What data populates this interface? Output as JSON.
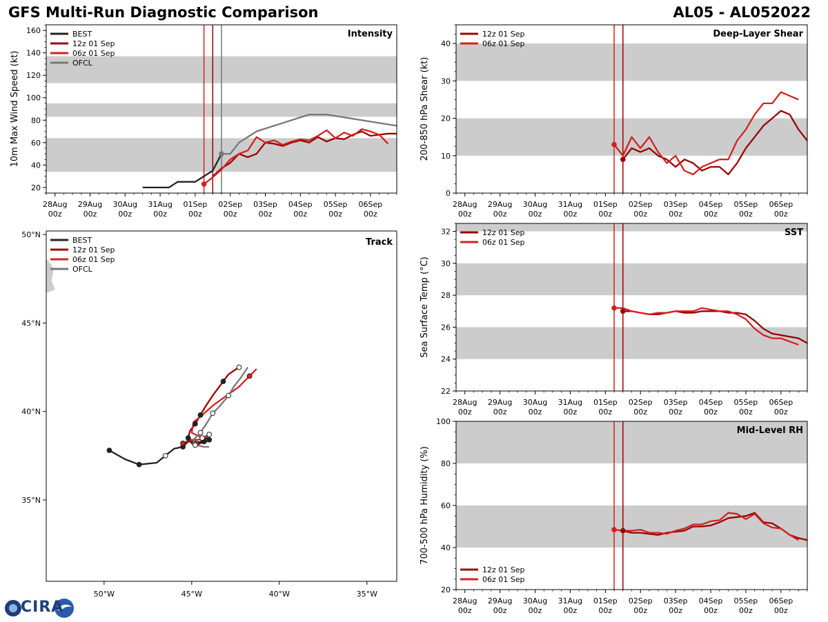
{
  "title": "GFS Multi-Run Diagnostic Comparison",
  "storm_id": "AL05 - AL052022",
  "logo_text": "CIRA",
  "colors": {
    "best": "#222222",
    "run12": "#990000",
    "run06": "#d42020",
    "ofcl": "#777777",
    "band": "#cccccc"
  },
  "time_ticks": [
    [
      "28Aug",
      "00z"
    ],
    [
      "29Aug",
      "00z"
    ],
    [
      "30Aug",
      "00z"
    ],
    [
      "31Aug",
      "00z"
    ],
    [
      "01Sep",
      "00z"
    ],
    [
      "02Sep",
      "00z"
    ],
    [
      "03Sep",
      "00z"
    ],
    [
      "04Sep",
      "00z"
    ],
    [
      "05Sep",
      "00z"
    ],
    [
      "06Sep",
      "00z"
    ]
  ],
  "chart_data": [
    {
      "id": "intensity",
      "type": "line",
      "title": "Intensity",
      "ylabel": "10m Max Wind Speed (kt)",
      "xlim": [
        -0.25,
        9.75
      ],
      "ylim": [
        15,
        165
      ],
      "yticks": [
        20,
        40,
        60,
        80,
        100,
        120,
        140,
        160
      ],
      "bands": [
        [
          34,
          64
        ],
        [
          83,
          95
        ],
        [
          113,
          137
        ]
      ],
      "vlines": [
        {
          "x": 4.25,
          "series": "06z 01 Sep"
        },
        {
          "x": 4.5,
          "series": "12z 01 Sep"
        },
        {
          "x": 4.75,
          "series": "OFCL"
        }
      ],
      "legend": [
        "BEST",
        "12z 01 Sep",
        "06z 01 Sep",
        "OFCL"
      ],
      "legend_position": "top-left",
      "series": [
        {
          "name": "BEST",
          "color_key": "best",
          "x": [
            2.5,
            2.75,
            3.0,
            3.25,
            3.5,
            3.75,
            4.0,
            4.25,
            4.5,
            4.75
          ],
          "y": [
            20,
            20,
            20,
            20,
            25,
            25,
            25,
            30,
            35,
            50
          ]
        },
        {
          "name": "12z 01 Sep",
          "color_key": "run12",
          "x": [
            4.5,
            4.75,
            5.0,
            5.25,
            5.5,
            5.75,
            6.0,
            6.25,
            6.5,
            6.75,
            7.0,
            7.25,
            7.5,
            7.75,
            8.0,
            8.25,
            8.5,
            8.75,
            9.0,
            9.25,
            9.5,
            9.75
          ],
          "y": [
            30,
            37,
            42,
            50,
            47,
            50,
            60,
            59,
            57,
            60,
            62,
            60,
            65,
            61,
            64,
            63,
            67,
            70,
            66,
            67,
            68,
            68
          ]
        },
        {
          "name": "06z 01 Sep",
          "color_key": "run06",
          "x": [
            4.25,
            4.5,
            4.75,
            5.0,
            5.25,
            5.5,
            5.75,
            6.0,
            6.25,
            6.5,
            6.75,
            7.0,
            7.25,
            7.5,
            7.75,
            8.0,
            8.25,
            8.5,
            8.75,
            9.0,
            9.25,
            9.5
          ],
          "y": [
            23,
            29,
            36,
            45,
            50,
            53,
            65,
            60,
            62,
            58,
            61,
            63,
            62,
            66,
            71,
            64,
            69,
            66,
            72,
            70,
            67,
            59
          ]
        },
        {
          "name": "OFCL",
          "color_key": "ofcl",
          "x": [
            4.75,
            5.0,
            5.25,
            5.75,
            7.25,
            7.75,
            9.75
          ],
          "y": [
            50,
            50,
            60,
            70,
            85,
            85,
            75
          ]
        }
      ],
      "markers": [
        {
          "series": "06z 01 Sep",
          "x": 4.25,
          "y": 23
        },
        {
          "series": "OFCL",
          "x": 4.75,
          "y": 50
        }
      ]
    },
    {
      "id": "shear",
      "type": "line",
      "title": "Deep-Layer Shear",
      "ylabel": "200-850 hPa Shear (kt)",
      "xlim": [
        -0.25,
        9.75
      ],
      "ylim": [
        0,
        45
      ],
      "yticks": [
        0,
        10,
        20,
        30,
        40
      ],
      "bands": [
        [
          10,
          20
        ],
        [
          30,
          40
        ]
      ],
      "vlines": [
        {
          "x": 4.25,
          "series": "06z 01 Sep"
        },
        {
          "x": 4.5,
          "series": "12z 01 Sep"
        }
      ],
      "legend": [
        "12z 01 Sep",
        "06z 01 Sep"
      ],
      "legend_position": "top-left",
      "series": [
        {
          "name": "12z 01 Sep",
          "color_key": "run12",
          "x": [
            4.5,
            4.75,
            5.0,
            5.25,
            5.5,
            5.75,
            6.0,
            6.25,
            6.5,
            6.75,
            7.0,
            7.25,
            7.5,
            7.75,
            8.0,
            8.25,
            8.5,
            8.75,
            9.0,
            9.25,
            9.5,
            9.75
          ],
          "y": [
            9,
            12,
            11,
            12,
            10,
            9,
            7,
            9,
            8,
            6,
            7,
            7,
            5,
            8,
            12,
            15,
            18,
            20,
            22,
            21,
            17,
            14
          ]
        },
        {
          "name": "06z 01 Sep",
          "color_key": "run06",
          "x": [
            4.25,
            4.5,
            4.75,
            5.0,
            5.25,
            5.5,
            5.75,
            6.0,
            6.25,
            6.5,
            6.75,
            7.0,
            7.25,
            7.5,
            7.75,
            8.0,
            8.25,
            8.5,
            8.75,
            9.0,
            9.25,
            9.5
          ],
          "y": [
            13,
            10,
            15,
            12,
            15,
            11,
            8,
            10,
            6,
            5,
            7,
            8,
            9,
            9,
            14,
            17,
            21,
            24,
            24,
            27,
            26,
            25
          ]
        }
      ],
      "markers": [
        {
          "series": "06z 01 Sep",
          "x": 4.25,
          "y": 13
        },
        {
          "series": "12z 01 Sep",
          "x": 4.5,
          "y": 9
        }
      ]
    },
    {
      "id": "sst",
      "type": "line",
      "title": "SST",
      "ylabel": "Sea Surface Temp (°C)",
      "xlim": [
        -0.25,
        9.75
      ],
      "ylim": [
        22,
        32.5
      ],
      "yticks": [
        22,
        24,
        26,
        28,
        30,
        32
      ],
      "bands": [
        [
          24,
          26
        ],
        [
          28,
          30
        ],
        [
          32,
          32.5
        ]
      ],
      "vlines": [
        {
          "x": 4.25,
          "series": "06z 01 Sep"
        },
        {
          "x": 4.5,
          "series": "12z 01 Sep"
        }
      ],
      "legend": [
        "12z 01 Sep",
        "06z 01 Sep"
      ],
      "legend_position": "top-left",
      "series": [
        {
          "name": "12z 01 Sep",
          "color_key": "run12",
          "x": [
            4.5,
            4.75,
            5.0,
            5.25,
            5.5,
            5.75,
            6.0,
            6.25,
            6.5,
            6.75,
            7.0,
            7.25,
            7.5,
            7.75,
            8.0,
            8.25,
            8.5,
            8.75,
            9.0,
            9.25,
            9.5,
            9.75
          ],
          "y": [
            27.0,
            27.0,
            26.9,
            26.8,
            26.8,
            26.9,
            27.0,
            26.9,
            26.9,
            27.0,
            27.0,
            27.0,
            26.9,
            26.9,
            26.8,
            26.4,
            25.9,
            25.6,
            25.5,
            25.4,
            25.3,
            25.0
          ]
        },
        {
          "name": "06z 01 Sep",
          "color_key": "run06",
          "x": [
            4.25,
            4.5,
            4.75,
            5.0,
            5.25,
            5.5,
            5.75,
            6.0,
            6.25,
            6.5,
            6.75,
            7.0,
            7.25,
            7.5,
            7.75,
            8.0,
            8.25,
            8.5,
            8.75,
            9.0,
            9.25,
            9.5
          ],
          "y": [
            27.2,
            27.2,
            27.0,
            26.9,
            26.8,
            26.9,
            26.9,
            27.0,
            27.0,
            27.0,
            27.2,
            27.1,
            27.0,
            27.0,
            26.8,
            26.5,
            25.9,
            25.5,
            25.3,
            25.3,
            25.1,
            24.9
          ]
        }
      ],
      "markers": [
        {
          "series": "06z 01 Sep",
          "x": 4.25,
          "y": 27.2
        },
        {
          "series": "12z 01 Sep",
          "x": 4.5,
          "y": 27.0
        }
      ]
    },
    {
      "id": "rh",
      "type": "line",
      "title": "Mid-Level RH",
      "ylabel": "700-500 hPa Humidity (%)",
      "xlim": [
        -0.25,
        9.75
      ],
      "ylim": [
        20,
        100
      ],
      "yticks": [
        20,
        40,
        60,
        80,
        100
      ],
      "bands": [
        [
          40,
          60
        ],
        [
          80,
          100
        ]
      ],
      "vlines": [
        {
          "x": 4.25,
          "series": "06z 01 Sep"
        },
        {
          "x": 4.5,
          "series": "12z 01 Sep"
        }
      ],
      "legend": [
        "12z 01 Sep",
        "06z 01 Sep"
      ],
      "legend_position": "bottom-left",
      "series": [
        {
          "name": "12z 01 Sep",
          "color_key": "run12",
          "x": [
            4.5,
            4.75,
            5.0,
            5.25,
            5.5,
            5.75,
            6.0,
            6.25,
            6.5,
            6.75,
            7.0,
            7.25,
            7.5,
            7.75,
            8.0,
            8.25,
            8.5,
            8.75,
            9.0,
            9.25,
            9.5,
            9.75
          ],
          "y": [
            48,
            47,
            47,
            46.5,
            46,
            47,
            47.5,
            48,
            50,
            50,
            50.5,
            52,
            54,
            54.5,
            55,
            56.5,
            52,
            51.5,
            49,
            46,
            44.5,
            43.5
          ]
        },
        {
          "name": "06z 01 Sep",
          "color_key": "run06",
          "x": [
            4.25,
            4.5,
            4.75,
            5.0,
            5.25,
            5.5,
            5.75,
            6.0,
            6.25,
            6.5,
            6.75,
            7.0,
            7.25,
            7.5,
            7.75,
            8.0,
            8.25,
            8.5,
            8.75,
            9.0,
            9.25,
            9.5
          ],
          "y": [
            48.5,
            48,
            48,
            48.5,
            47,
            47,
            46.5,
            48,
            49,
            51,
            51,
            52.5,
            53,
            56.5,
            56,
            53.5,
            56,
            51.5,
            49.5,
            49,
            46,
            43.5
          ]
        }
      ],
      "markers": [
        {
          "series": "06z 01 Sep",
          "x": 4.25,
          "y": 48.5
        },
        {
          "series": "12z 01 Sep",
          "x": 4.5,
          "y": 48
        }
      ]
    },
    {
      "id": "track",
      "type": "scatter",
      "title": "Track",
      "xlim": [
        -53.3,
        -33.3
      ],
      "ylim": [
        30.4,
        50.2
      ],
      "xticks": [
        -50,
        -45,
        -40,
        -35
      ],
      "xtick_labels": [
        "50°W",
        "45°W",
        "40°W",
        "35°W"
      ],
      "yticks": [
        35,
        40,
        45,
        50
      ],
      "ytick_labels": [
        "35°N",
        "40°N",
        "45°N",
        "50°N"
      ],
      "legend": [
        "BEST",
        "12z 01 Sep",
        "06z 01 Sep",
        "OFCL"
      ],
      "legend_position": "top-left",
      "land": [
        [
          -53.3,
          48.6
        ],
        [
          -53.0,
          48.3
        ],
        [
          -52.9,
          47.9
        ],
        [
          -53.0,
          47.4
        ],
        [
          -52.8,
          46.9
        ],
        [
          -53.3,
          46.7
        ]
      ],
      "series": [
        {
          "name": "BEST",
          "color_key": "best",
          "lon": [
            -49.7,
            -48.8,
            -48.0,
            -47.0,
            -46.5,
            -46.0,
            -45.5,
            -45.2,
            -44.8,
            -44.3,
            -44.0,
            -44.1,
            -44.5,
            -44.8
          ],
          "lat": [
            37.8,
            37.3,
            37.0,
            37.1,
            37.5,
            37.9,
            38.0,
            38.3,
            38.3,
            38.2,
            38.4,
            38.5,
            38.3,
            38.0
          ],
          "filled": [
            -49.7,
            -48.0,
            -45.5,
            -44.0
          ],
          "open": [
            -46.5
          ]
        },
        {
          "name": "12z 01 Sep",
          "color_key": "run12",
          "lon": [
            -44.3,
            -44.7,
            -45.0,
            -45.2,
            -45.1,
            -44.8,
            -44.5,
            -44.2,
            -43.8,
            -43.5,
            -43.2,
            -42.9,
            -42.6,
            -42.3
          ],
          "lat": [
            38.3,
            38.1,
            38.2,
            38.5,
            38.9,
            39.3,
            39.8,
            40.3,
            40.9,
            41.3,
            41.7,
            42.1,
            42.3,
            42.5
          ],
          "filled": [
            -44.3,
            -45.2,
            -44.8,
            -44.5,
            -43.2
          ],
          "open": [
            -42.3
          ]
        },
        {
          "name": "06z 01 Sep",
          "color_key": "run06",
          "lon": [
            -45.5,
            -45.1,
            -44.6,
            -44.1,
            -44.0,
            -44.4,
            -45.0,
            -44.9,
            -44.4,
            -43.7,
            -43.0,
            -42.3,
            -41.7,
            -41.3
          ],
          "lat": [
            38.2,
            38.4,
            38.4,
            38.6,
            38.7,
            38.5,
            38.8,
            39.4,
            39.8,
            40.4,
            40.9,
            41.4,
            42.0,
            42.4
          ],
          "filled": [
            -45.5,
            -41.7
          ],
          "open": [
            -44.0,
            -44.4
          ]
        },
        {
          "name": "OFCL",
          "color_key": "ofcl",
          "lon": [
            -44.0,
            -44.3,
            -44.8,
            -44.9,
            -44.5,
            -44.1,
            -43.8,
            -43.4,
            -42.9,
            -42.6,
            -42.2,
            -41.8
          ],
          "lat": [
            38.0,
            38.0,
            38.1,
            38.4,
            38.8,
            39.4,
            39.9,
            40.3,
            40.9,
            41.4,
            41.9,
            42.5
          ],
          "filled": [],
          "open": [
            -44.5,
            -44.8,
            -43.8,
            -42.9
          ]
        }
      ]
    }
  ]
}
